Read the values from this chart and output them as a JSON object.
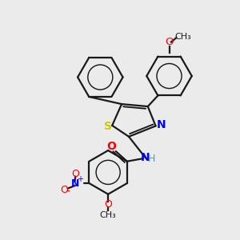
{
  "background_color": "#ebebeb",
  "atom_colors": {
    "C": "#1a1a1a",
    "H": "#5a9ea0",
    "N": "#0000ff",
    "O": "#ff0000",
    "S": "#cccc00"
  },
  "bond_color": "#1a1a1a",
  "figsize": [
    3.0,
    3.0
  ],
  "dpi": 100
}
